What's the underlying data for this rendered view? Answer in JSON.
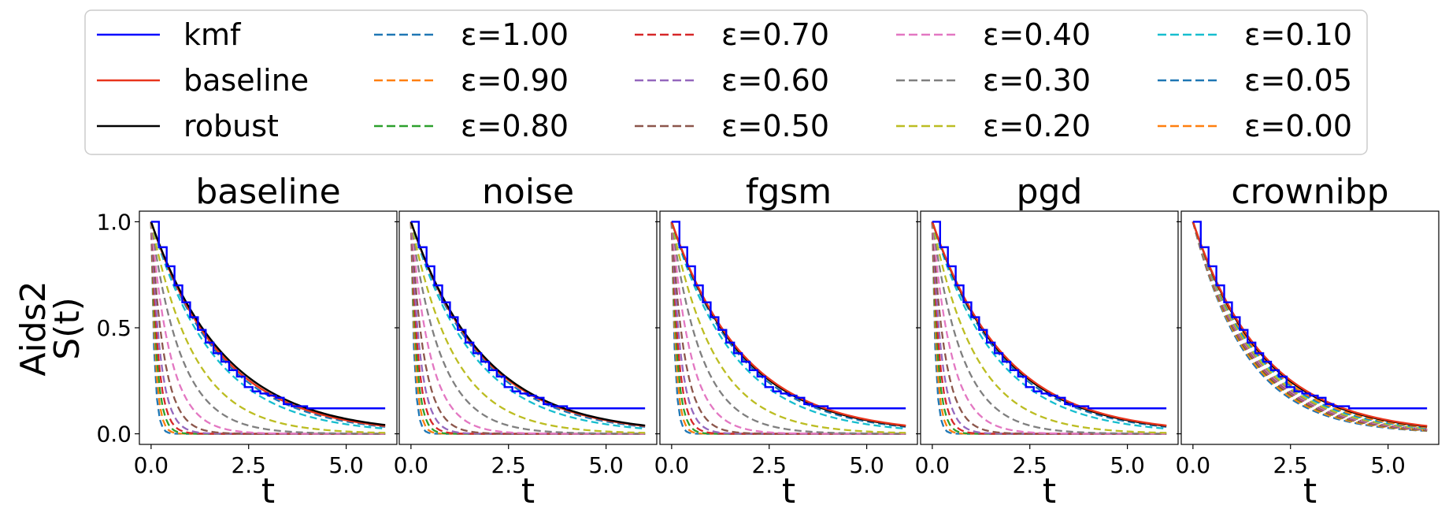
{
  "chart_data": {
    "type": "line",
    "dataset": "Aids2",
    "ylabel_line1": "Aids2",
    "ylabel_line2": "S(t)",
    "xlabel": "t",
    "xlim": [
      -0.3,
      6.3
    ],
    "ylim": [
      -0.05,
      1.05
    ],
    "xticks": [
      0.0,
      2.5,
      5.0
    ],
    "xtick_labels": [
      "0.0",
      "2.5",
      "5.0"
    ],
    "yticks": [
      0.0,
      0.5,
      1.0
    ],
    "ytick_labels": [
      "0.0",
      "0.5",
      "1.0"
    ],
    "legend": {
      "placement": "top-center",
      "columns": [
        [
          {
            "label": "kmf",
            "color": "#0000ff",
            "dash": "solid"
          },
          {
            "label": "baseline",
            "color": "#e8341c",
            "dash": "solid"
          },
          {
            "label": "robust",
            "color": "#000000",
            "dash": "solid"
          }
        ],
        [
          {
            "label": "ε=1.00",
            "color": "#1f77b4",
            "dash": "dashed"
          },
          {
            "label": "ε=0.90",
            "color": "#ff7f0e",
            "dash": "dashed"
          },
          {
            "label": "ε=0.80",
            "color": "#2ca02c",
            "dash": "dashed"
          }
        ],
        [
          {
            "label": "ε=0.70",
            "color": "#d62728",
            "dash": "dashed"
          },
          {
            "label": "ε=0.60",
            "color": "#9467bd",
            "dash": "dashed"
          },
          {
            "label": "ε=0.50",
            "color": "#8c564b",
            "dash": "dashed"
          }
        ],
        [
          {
            "label": "ε=0.40",
            "color": "#e377c2",
            "dash": "dashed"
          },
          {
            "label": "ε=0.30",
            "color": "#7f7f7f",
            "dash": "dashed"
          },
          {
            "label": "ε=0.20",
            "color": "#bcbd22",
            "dash": "dashed"
          }
        ],
        [
          {
            "label": "ε=0.10",
            "color": "#17becf",
            "dash": "dashed"
          },
          {
            "label": "ε=0.05",
            "color": "#1f77b4",
            "dash": "dashed"
          },
          {
            "label": "ε=0.00",
            "color": "#ff7f0e",
            "dash": "dashed"
          }
        ]
      ]
    },
    "kmf": {
      "color": "#0000ff",
      "t": [
        0.0,
        0.2,
        0.4,
        0.6,
        0.8,
        1.0,
        1.2,
        1.4,
        1.6,
        1.8,
        2.0,
        2.2,
        2.4,
        2.6,
        2.8,
        3.0,
        3.2,
        3.4,
        3.6,
        3.8,
        4.0,
        4.2,
        6.0
      ],
      "S": [
        1.0,
        0.88,
        0.79,
        0.7,
        0.62,
        0.55,
        0.49,
        0.43,
        0.38,
        0.34,
        0.3,
        0.27,
        0.22,
        0.2,
        0.19,
        0.18,
        0.17,
        0.14,
        0.13,
        0.13,
        0.12,
        0.12,
        0.12
      ]
    },
    "eps_levels": [
      1.0,
      0.9,
      0.8,
      0.7,
      0.6,
      0.5,
      0.4,
      0.3,
      0.2,
      0.1,
      0.05,
      0.0
    ],
    "eps_colors": [
      "#1f77b4",
      "#ff7f0e",
      "#2ca02c",
      "#d62728",
      "#9467bd",
      "#8c564b",
      "#e377c2",
      "#7f7f7f",
      "#bcbd22",
      "#17becf",
      "#1f77b4",
      "#ff7f0e"
    ],
    "panels": [
      {
        "title": "baseline",
        "baseline_rate": 0.55,
        "robust_rate": 0.53,
        "reference_line": "robust",
        "eps_rates": [
          12.0,
          9.0,
          7.0,
          5.5,
          4.2,
          3.0,
          2.0,
          1.3,
          0.9,
          0.62,
          0.57,
          0.55
        ]
      },
      {
        "title": "noise",
        "baseline_rate": 0.55,
        "robust_rate": 0.54,
        "reference_line": "robust",
        "eps_rates": [
          12.0,
          9.0,
          7.0,
          5.5,
          4.2,
          3.0,
          2.0,
          1.3,
          0.9,
          0.62,
          0.57,
          0.55
        ]
      },
      {
        "title": "fgsm",
        "baseline_rate": 0.54,
        "robust_rate": 0.55,
        "reference_line": "baseline",
        "eps_rates": [
          12.0,
          9.0,
          7.0,
          5.5,
          4.2,
          3.0,
          2.0,
          1.3,
          0.9,
          0.62,
          0.57,
          0.55
        ]
      },
      {
        "title": "pgd",
        "baseline_rate": 0.54,
        "robust_rate": 0.55,
        "reference_line": "baseline",
        "eps_rates": [
          12.0,
          9.0,
          7.0,
          5.5,
          4.2,
          3.0,
          2.0,
          1.3,
          0.9,
          0.62,
          0.57,
          0.55
        ]
      },
      {
        "title": "crownibp",
        "baseline_rate": 0.55,
        "robust_rate": 0.56,
        "reference_line": "baseline",
        "eps_rates": [
          0.72,
          0.7,
          0.68,
          0.67,
          0.66,
          0.65,
          0.64,
          0.63,
          0.62,
          0.6,
          0.59,
          0.58
        ]
      }
    ]
  }
}
